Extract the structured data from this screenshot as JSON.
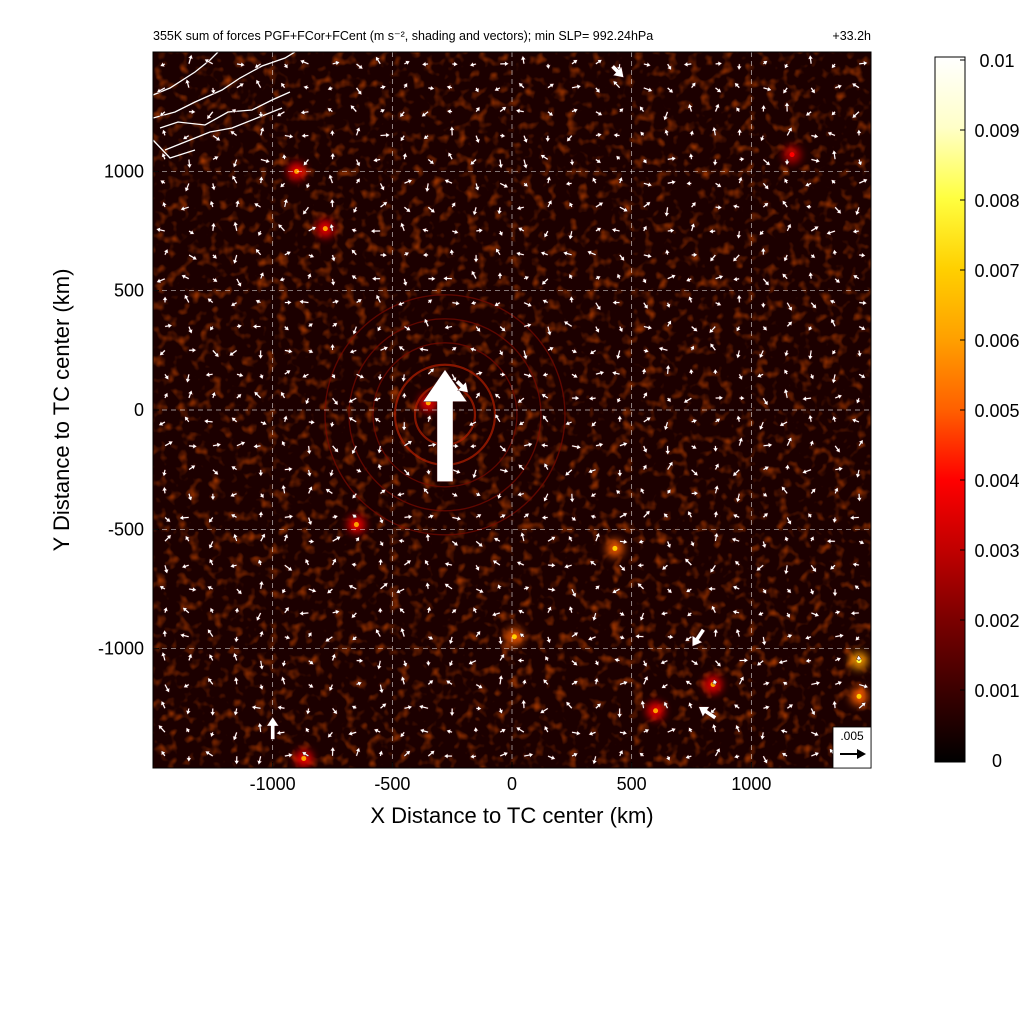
{
  "chart_data": {
    "type": "heatmap",
    "title": "355K sum of forces PGF+FCor+FCent (m s⁻², shading and vectors); min SLP= 992.24hPa",
    "time_label": "+33.2h",
    "xlabel": "X Distance to TC center (km)",
    "ylabel": "Y Distance to TC center (km)",
    "xlim": [
      -1500,
      1500
    ],
    "ylim": [
      -1500,
      1500
    ],
    "xticks": [
      -1000,
      -500,
      0,
      500,
      1000
    ],
    "yticks": [
      -1000,
      -500,
      0,
      500,
      1000
    ],
    "xtick_labels": [
      "-1000",
      "-500",
      "0",
      "500",
      "1000"
    ],
    "ytick_labels": [
      "-1000",
      "-500",
      "0",
      "500",
      "1000"
    ],
    "grid": true,
    "colorbar": {
      "min": 0,
      "max": 0.01,
      "ticks": [
        "0",
        "0.001",
        "0.002",
        "0.003",
        "0.004",
        "0.005",
        "0.006",
        "0.007",
        "0.008",
        "0.009",
        "0.01"
      ],
      "colormap": [
        "#000000",
        "#3a0000",
        "#7a0000",
        "#c00000",
        "#ff0000",
        "#ff6000",
        "#ffa000",
        "#ffd000",
        "#ffff40",
        "#ffffc8",
        "#ffffff"
      ]
    },
    "reference_vector": {
      "label": ".005",
      "magnitude": 0.005
    },
    "notable_vectors": [
      {
        "x": -280,
        "y": -300,
        "u": 0,
        "v": 0.02
      },
      {
        "x": -230,
        "y": 120,
        "u": 0.002,
        "v": -0.002
      },
      {
        "x": -1000,
        "y": -1380,
        "u": 0,
        "v": 0.004
      },
      {
        "x": 850,
        "y": -1290,
        "u": -0.003,
        "v": 0.002
      },
      {
        "x": 800,
        "y": -920,
        "u": -0.002,
        "v": -0.003
      },
      {
        "x": 420,
        "y": 1440,
        "u": 0.002,
        "v": -0.002
      }
    ],
    "hotspots": [
      {
        "x": -350,
        "y": 30,
        "value": 0.004
      },
      {
        "x": -650,
        "y": -480,
        "value": 0.004
      },
      {
        "x": 430,
        "y": -580,
        "value": 0.005
      },
      {
        "x": 10,
        "y": -950,
        "value": 0.005
      },
      {
        "x": 1450,
        "y": -1050,
        "value": 0.006
      },
      {
        "x": 1450,
        "y": -1200,
        "value": 0.005
      },
      {
        "x": -780,
        "y": 760,
        "value": 0.004
      },
      {
        "x": -900,
        "y": 1000,
        "value": 0.004
      },
      {
        "x": 600,
        "y": -1260,
        "value": 0.004
      },
      {
        "x": 1170,
        "y": 1070,
        "value": 0.003
      },
      {
        "x": 840,
        "y": -1150,
        "value": 0.004
      },
      {
        "x": -870,
        "y": -1460,
        "value": 0.004
      }
    ],
    "colors": {
      "background_field": "#1c0000",
      "vector": "#ffffff",
      "coastline": "#ffffff",
      "grid": "#ffffff"
    }
  }
}
